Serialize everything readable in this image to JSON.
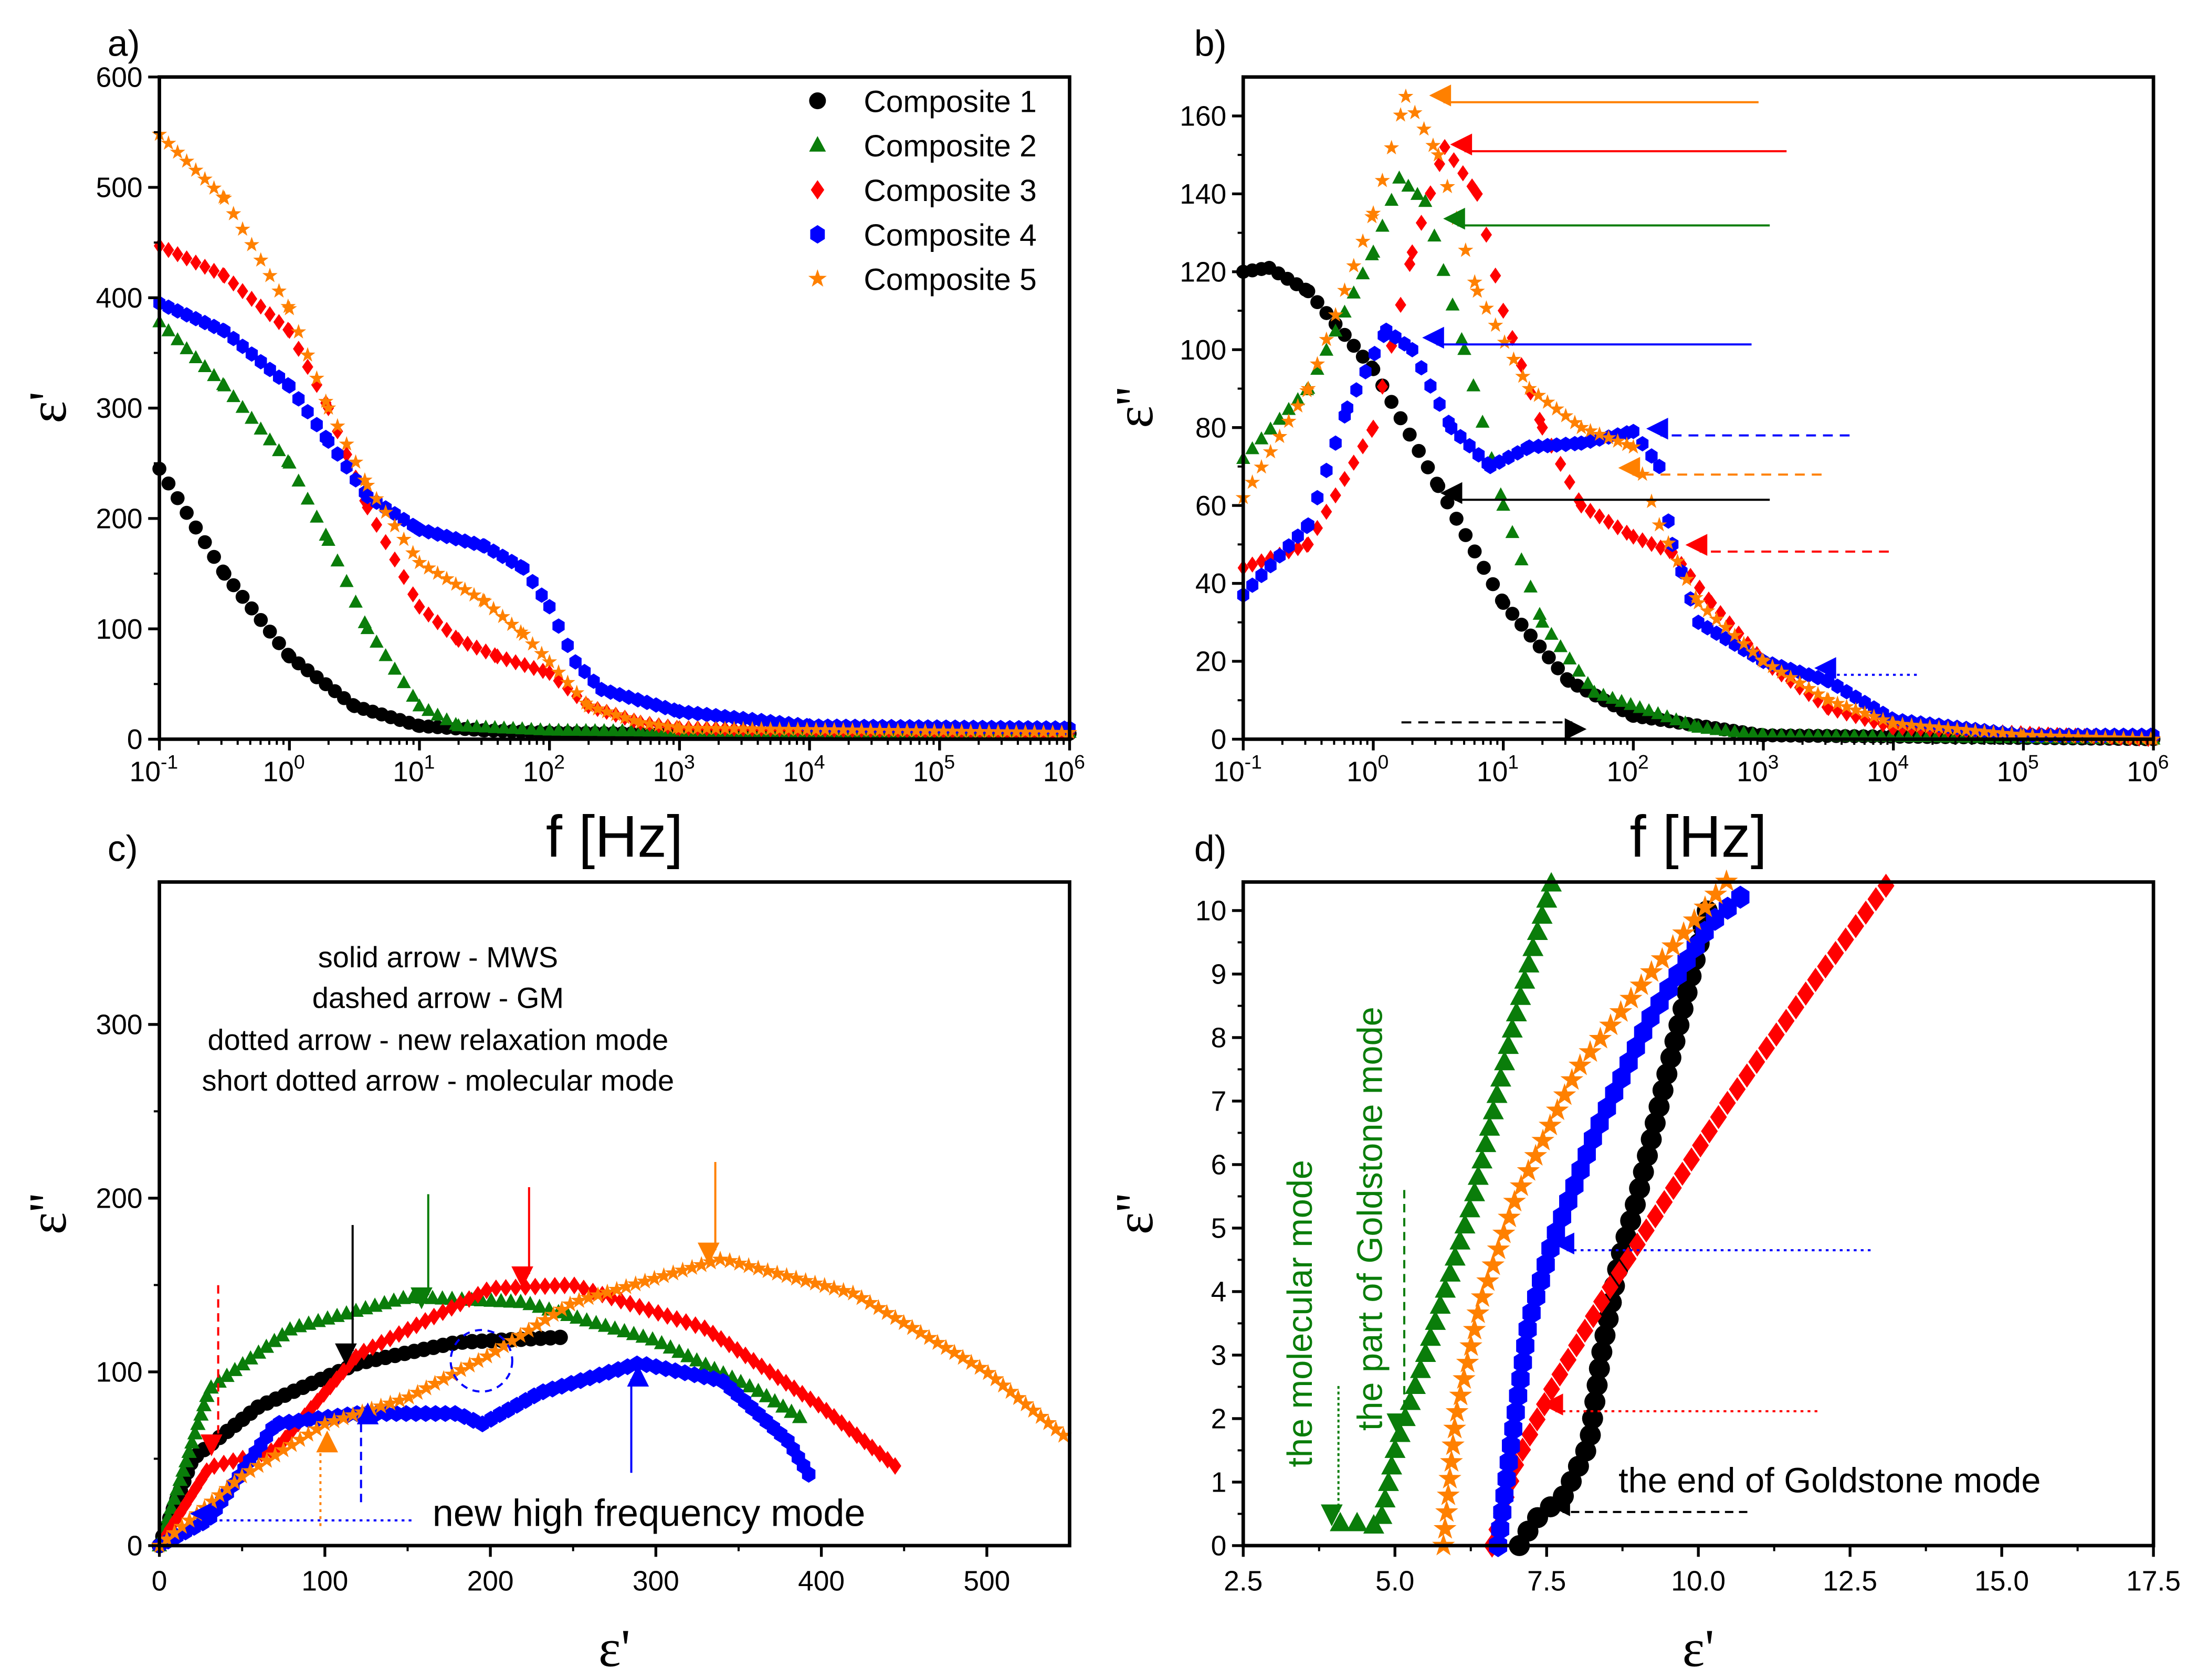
{
  "chart_data": [
    {
      "panel": "a)",
      "type": "scatter",
      "xlabel": "f [Hz]",
      "ylabel": "ε'",
      "xscale": "log",
      "xlim": [
        0.1,
        1000000
      ],
      "ylim": [
        0,
        600
      ],
      "xtick_exponents": [
        -1,
        0,
        1,
        2,
        3,
        4,
        5,
        6
      ],
      "yticks": [
        0,
        100,
        200,
        300,
        400,
        500,
        600
      ],
      "legend": "top-right",
      "series": [
        {
          "name": "Composite 1",
          "color": "#000000",
          "marker": "circle",
          "log10f_eps": [
            [
              -1,
              245
            ],
            [
              -0.5,
              150
            ],
            [
              0,
              75
            ],
            [
              0.5,
              30
            ],
            [
              1,
              12
            ],
            [
              1.5,
              8
            ],
            [
              2,
              6
            ],
            [
              3,
              5
            ],
            [
              6,
              5
            ]
          ]
        },
        {
          "name": "Composite 2",
          "color": "#0a7d0a",
          "marker": "triangle",
          "log10f_eps": [
            [
              -1,
              378
            ],
            [
              -0.5,
              320
            ],
            [
              0,
              250
            ],
            [
              0.3,
              180
            ],
            [
              0.6,
              100
            ],
            [
              1,
              30
            ],
            [
              1.3,
              12
            ],
            [
              2,
              8
            ],
            [
              3,
              7
            ],
            [
              6,
              6
            ]
          ]
        },
        {
          "name": "Composite 3",
          "color": "#ff0000",
          "marker": "diamond",
          "log10f_eps": [
            [
              -1,
              447
            ],
            [
              -0.5,
              420
            ],
            [
              0,
              370
            ],
            [
              0.3,
              300
            ],
            [
              0.6,
              210
            ],
            [
              1,
              120
            ],
            [
              1.3,
              90
            ],
            [
              1.6,
              75
            ],
            [
              2,
              60
            ],
            [
              2.3,
              30
            ],
            [
              2.7,
              15
            ],
            [
              3,
              10
            ],
            [
              6,
              6
            ]
          ]
        },
        {
          "name": "Composite 4",
          "color": "#0000ff",
          "marker": "hexagon",
          "log10f_eps": [
            [
              -1,
              395
            ],
            [
              -0.5,
              370
            ],
            [
              0,
              320
            ],
            [
              0.3,
              270
            ],
            [
              0.6,
              220
            ],
            [
              1,
              190
            ],
            [
              1.5,
              175
            ],
            [
              1.8,
              155
            ],
            [
              2,
              120
            ],
            [
              2.2,
              70
            ],
            [
              2.4,
              45
            ],
            [
              3,
              25
            ],
            [
              4,
              12
            ],
            [
              6,
              10
            ]
          ]
        },
        {
          "name": "Composite 5",
          "color": "#ff8000",
          "marker": "star",
          "log10f_eps": [
            [
              -1,
              548
            ],
            [
              -0.5,
              490
            ],
            [
              0,
              390
            ],
            [
              0.3,
              300
            ],
            [
              0.6,
              230
            ],
            [
              1,
              160
            ],
            [
              1.5,
              125
            ],
            [
              1.8,
              95
            ],
            [
              2,
              70
            ],
            [
              2.3,
              30
            ],
            [
              2.7,
              15
            ],
            [
              3,
              10
            ],
            [
              6,
              6
            ]
          ]
        }
      ]
    },
    {
      "panel": "b)",
      "type": "scatter",
      "xlabel": "f [Hz]",
      "ylabel": "ε''",
      "xscale": "log",
      "xlim": [
        0.1,
        1000000
      ],
      "ylim": [
        0,
        170
      ],
      "xtick_exponents": [
        -1,
        0,
        1,
        2,
        3,
        4,
        5,
        6
      ],
      "yticks": [
        0,
        20,
        40,
        60,
        80,
        100,
        120,
        140,
        160
      ],
      "series": [
        {
          "name": "Composite 1",
          "color": "#000000",
          "marker": "circle",
          "log10f_eps": [
            [
              -1,
              120
            ],
            [
              -0.8,
              121
            ],
            [
              -0.5,
              115
            ],
            [
              0,
              95
            ],
            [
              0.5,
              65
            ],
            [
              1,
              35
            ],
            [
              1.5,
              15
            ],
            [
              2,
              6
            ],
            [
              3,
              1
            ],
            [
              6,
              0
            ]
          ]
        },
        {
          "name": "Composite 2",
          "color": "#0a7d0a",
          "marker": "triangle",
          "log10f_eps": [
            [
              -1,
              72
            ],
            [
              -0.5,
              90
            ],
            [
              0,
              125
            ],
            [
              0.2,
              144
            ],
            [
              0.4,
              138
            ],
            [
              0.7,
              100
            ],
            [
              1,
              60
            ],
            [
              1.3,
              30
            ],
            [
              1.7,
              12
            ],
            [
              2.5,
              3
            ],
            [
              3,
              1
            ],
            [
              6,
              0
            ]
          ]
        },
        {
          "name": "Composite 3",
          "color": "#ff0000",
          "marker": "diamond",
          "log10f_eps": [
            [
              -1,
              44
            ],
            [
              -0.5,
              50
            ],
            [
              0,
              80
            ],
            [
              0.3,
              125
            ],
            [
              0.55,
              152
            ],
            [
              0.8,
              140
            ],
            [
              1,
              110
            ],
            [
              1.3,
              80
            ],
            [
              1.6,
              60
            ],
            [
              2,
              52
            ],
            [
              2.3,
              48
            ],
            [
              2.6,
              35
            ],
            [
              3,
              20
            ],
            [
              3.5,
              8
            ],
            [
              4,
              3
            ],
            [
              6,
              0
            ]
          ]
        },
        {
          "name": "Composite 4",
          "color": "#0000ff",
          "marker": "hexagon",
          "log10f_eps": [
            [
              -1,
              37
            ],
            [
              -0.5,
              55
            ],
            [
              -0.2,
              85
            ],
            [
              0.1,
              105
            ],
            [
              0.3,
              100
            ],
            [
              0.6,
              80
            ],
            [
              0.9,
              70
            ],
            [
              1.2,
              75
            ],
            [
              1.6,
              76
            ],
            [
              2,
              79
            ],
            [
              2.2,
              70
            ],
            [
              2.3,
              50
            ],
            [
              2.5,
              30
            ],
            [
              3,
              20
            ],
            [
              3.5,
              15
            ],
            [
              4,
              5
            ],
            [
              5,
              1
            ],
            [
              6,
              1
            ]
          ]
        },
        {
          "name": "Composite 5",
          "color": "#ff8000",
          "marker": "star",
          "log10f_eps": [
            [
              -1,
              62
            ],
            [
              -0.5,
              90
            ],
            [
              0,
              135
            ],
            [
              0.25,
              165
            ],
            [
              0.5,
              150
            ],
            [
              0.8,
              115
            ],
            [
              1.2,
              90
            ],
            [
              1.6,
              80
            ],
            [
              2,
              75
            ],
            [
              2.2,
              55
            ],
            [
              2.5,
              35
            ],
            [
              3,
              20
            ],
            [
              3.5,
              10
            ],
            [
              4,
              4
            ],
            [
              5,
              1
            ],
            [
              6,
              0
            ]
          ]
        }
      ]
    },
    {
      "panel": "c)",
      "type": "scatter",
      "xlabel": "ε'",
      "ylabel": "ε''",
      "xscale": "linear",
      "xlim": [
        0,
        550
      ],
      "ylim": [
        0,
        382
      ],
      "xticks": [
        0,
        100,
        200,
        300,
        400,
        500
      ],
      "yticks": [
        0,
        100,
        200,
        300
      ],
      "annotation_lines": [
        "solid arrow - MWS",
        "dashed arrow - GM",
        "dotted arrow - new relaxation mode",
        "short dotted arrow - molecular mode"
      ],
      "annotation_hf": "new high frequency mode",
      "series": [
        {
          "name": "Composite 1",
          "color": "#000000",
          "marker": "circle",
          "eps1_eps2": [
            [
              0,
              0
            ],
            [
              20,
              50
            ],
            [
              60,
              80
            ],
            [
              120,
              105
            ],
            [
              180,
              117
            ],
            [
              245,
              120
            ]
          ]
        },
        {
          "name": "Composite 2",
          "color": "#0a7d0a",
          "marker": "triangle",
          "eps1_eps2": [
            [
              0,
              0
            ],
            [
              30,
              90
            ],
            [
              80,
              125
            ],
            [
              150,
              143
            ],
            [
              220,
              140
            ],
            [
              300,
              118
            ],
            [
              360,
              90
            ],
            [
              390,
              72
            ]
          ]
        },
        {
          "name": "Composite 3",
          "color": "#ff0000",
          "marker": "diamond",
          "eps1_eps2": [
            [
              0,
              0
            ],
            [
              30,
              45
            ],
            [
              70,
              55
            ],
            [
              120,
              110
            ],
            [
              200,
              148
            ],
            [
              250,
              150
            ],
            [
              330,
              125
            ],
            [
              400,
              80
            ],
            [
              447,
              44
            ]
          ]
        },
        {
          "name": "Composite 4",
          "color": "#0000ff",
          "marker": "hexagon",
          "eps1_eps2": [
            [
              0,
              0
            ],
            [
              30,
              15
            ],
            [
              70,
              70
            ],
            [
              120,
              76
            ],
            [
              180,
              76
            ],
            [
              195,
              70
            ],
            [
              230,
              88
            ],
            [
              290,
              105
            ],
            [
              340,
              95
            ],
            [
              380,
              60
            ],
            [
              395,
              37
            ]
          ]
        },
        {
          "name": "Composite 5",
          "color": "#ff8000",
          "marker": "star",
          "eps1_eps2": [
            [
              0,
              0
            ],
            [
              50,
              40
            ],
            [
              100,
              70
            ],
            [
              150,
              85
            ],
            [
              200,
              110
            ],
            [
              250,
              140
            ],
            [
              340,
              165
            ],
            [
              420,
              145
            ],
            [
              500,
              100
            ],
            [
              548,
              62
            ]
          ]
        }
      ]
    },
    {
      "panel": "d)",
      "type": "scatter",
      "xlabel": "ε'",
      "ylabel": "ε''",
      "xscale": "linear",
      "xlim": [
        2.5,
        17.5
      ],
      "ylim": [
        0,
        10.45
      ],
      "xticks": [
        "2.5",
        "5.0",
        "7.5",
        "10.0",
        "12.5",
        "15.0",
        "17.5"
      ],
      "yticks": [
        0,
        1,
        2,
        3,
        4,
        5,
        6,
        7,
        8,
        9,
        10
      ],
      "annotation_molecular": "the molecular mode",
      "annotation_goldstone_part": "the part of Goldstone mode",
      "annotation_goldstone_end": "the end of Goldstone mode",
      "series": [
        {
          "name": "Composite 1",
          "color": "#000000",
          "marker": "circle",
          "eps1_eps2": [
            [
              7.05,
              0
            ],
            [
              7.3,
              0.4
            ],
            [
              7.8,
              0.8
            ],
            [
              8.2,
              1.6
            ],
            [
              8.4,
              3
            ],
            [
              8.7,
              4.5
            ],
            [
              9.0,
              5.5
            ],
            [
              9.5,
              7.5
            ],
            [
              10.2,
              10.2
            ]
          ]
        },
        {
          "name": "Composite 2",
          "color": "#0a7d0a",
          "marker": "triangle",
          "eps1_eps2": [
            [
              4.1,
              0.35
            ],
            [
              4.4,
              0.35
            ],
            [
              4.75,
              0.3
            ],
            [
              5.0,
              1.5
            ],
            [
              5.5,
              3
            ],
            [
              6.3,
              5.5
            ],
            [
              6.9,
              8
            ],
            [
              7.3,
              9.5
            ],
            [
              7.6,
              10.5
            ]
          ]
        },
        {
          "name": "Composite 3",
          "color": "#ff0000",
          "marker": "diamond",
          "eps1_eps2": [
            [
              6.6,
              0
            ],
            [
              7.0,
              1.3
            ],
            [
              7.6,
              2.5
            ],
            [
              8.5,
              4
            ],
            [
              9.5,
              5.5
            ],
            [
              10.5,
              7
            ],
            [
              12,
              9
            ],
            [
              13.1,
              10.4
            ]
          ]
        },
        {
          "name": "Composite 4",
          "color": "#0000ff",
          "marker": "hexagon",
          "eps1_eps2": [
            [
              6.7,
              0
            ],
            [
              6.9,
              1.5
            ],
            [
              7.2,
              3.5
            ],
            [
              7.6,
              4.8
            ],
            [
              8.3,
              6.5
            ],
            [
              9.2,
              8.3
            ],
            [
              10.2,
              9.8
            ],
            [
              10.8,
              10.3
            ]
          ]
        },
        {
          "name": "Composite 5",
          "color": "#ff8000",
          "marker": "star",
          "eps1_eps2": [
            [
              5.8,
              0
            ],
            [
              6.0,
              2
            ],
            [
              6.4,
              3.8
            ],
            [
              7.0,
              5.5
            ],
            [
              8.0,
              7.5
            ],
            [
              9.2,
              9
            ],
            [
              10.5,
              10.5
            ]
          ]
        }
      ]
    }
  ]
}
